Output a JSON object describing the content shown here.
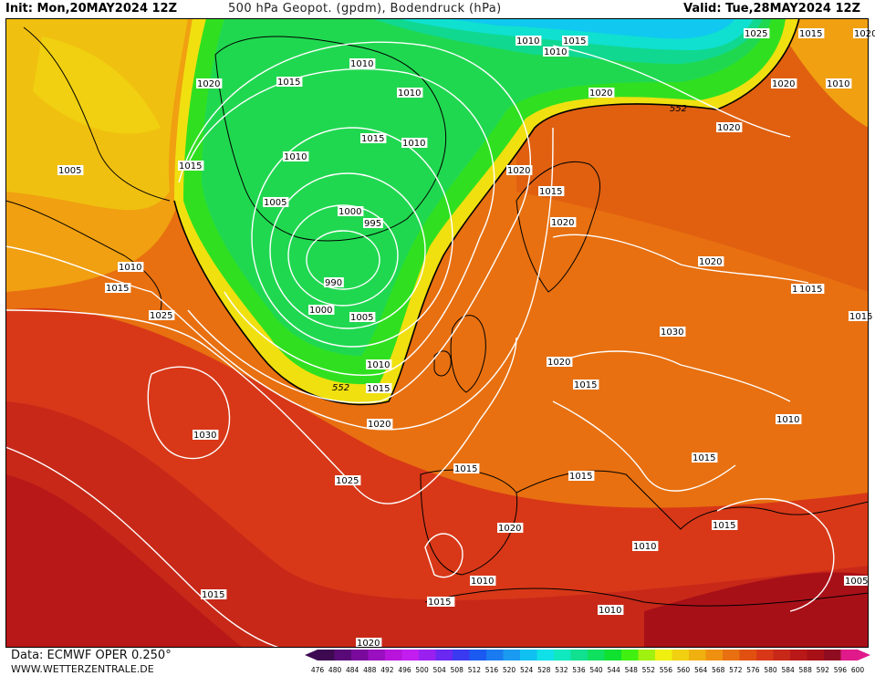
{
  "header": {
    "init": "Init: Mon,20MAY2024 12Z",
    "title": "500 hPa Geopot. (gpdm), Bodendruck (hPa)",
    "valid": "Valid: Tue,28MAY2024 12Z"
  },
  "footer": {
    "data_source": "Data: ECMWF OPER 0.250°",
    "website": "WWW.WETTERZENTRALE.DE"
  },
  "legend": {
    "values": [
      "476",
      "480",
      "484",
      "488",
      "492",
      "496",
      "500",
      "504",
      "508",
      "512",
      "516",
      "520",
      "524",
      "528",
      "532",
      "536",
      "540",
      "544",
      "548",
      "552",
      "556",
      "560",
      "564",
      "568",
      "572",
      "576",
      "580",
      "584",
      "588",
      "592",
      "596",
      "600"
    ],
    "colors": [
      "#3d0a52",
      "#5a0a78",
      "#7a0a9c",
      "#9a10c0",
      "#b814dc",
      "#c21ef0",
      "#9a20f0",
      "#6a28f0",
      "#3a3af0",
      "#1a5af0",
      "#1a7af0",
      "#1a9af0",
      "#10c0f0",
      "#10e0e8",
      "#10e8c0",
      "#10e090",
      "#10e060",
      "#10e030",
      "#40f010",
      "#a0f010",
      "#f0f010",
      "#f0d010",
      "#f0b010",
      "#f09010",
      "#e87010",
      "#e05010",
      "#d83818",
      "#c82818",
      "#b81818",
      "#a81018",
      "#900c20",
      "#e01a8a"
    ]
  },
  "map": {
    "contour_552_label": "552",
    "isobar_labels": [
      "1020",
      "1010",
      "1015",
      "1020",
      "1025",
      "1010",
      "1020",
      "1010",
      "1015",
      "1015",
      "1010",
      "1010",
      "1010",
      "1005",
      "1015",
      "1015",
      "1005",
      "1000",
      "995",
      "1020",
      "1015",
      "1020",
      "990",
      "1000",
      "1005",
      "1010",
      "1015",
      "1020",
      "1025",
      "1030",
      "1010",
      "1015",
      "1020",
      "1025",
      "1030",
      "1020",
      "1015",
      "1015",
      "1015",
      "1015",
      "1010",
      "1015",
      "1015",
      "1020",
      "1015",
      "1010",
      "1015",
      "1010",
      "1015",
      "1010",
      "1025",
      "1020",
      "1015",
      "1005",
      "1020",
      "1010",
      "1020",
      "552"
    ]
  }
}
